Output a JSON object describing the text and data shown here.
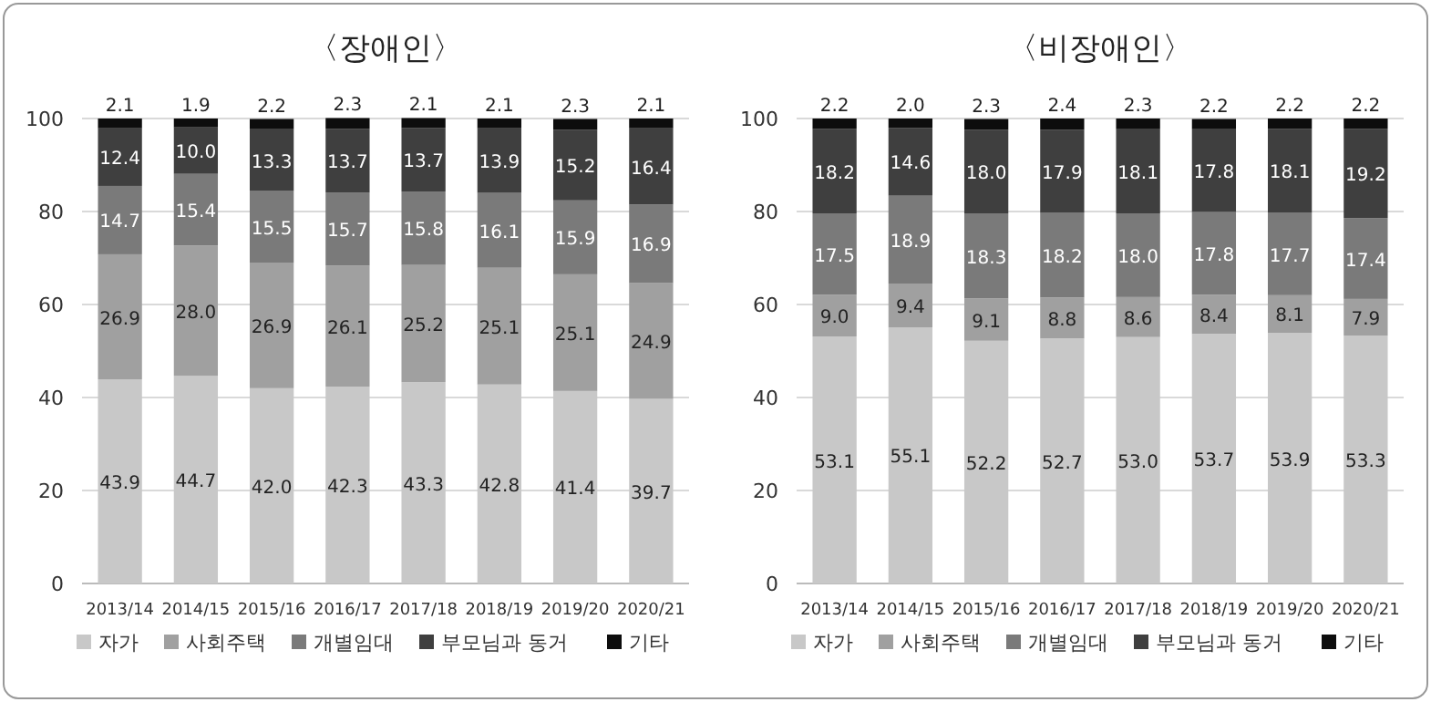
{
  "chart_data": [
    {
      "type": "bar",
      "title": "〈장애인〉",
      "categories": [
        "2013/14",
        "2014/15",
        "2015/16",
        "2016/17",
        "2017/18",
        "2018/19",
        "2019/20",
        "2020/21"
      ],
      "stacked": true,
      "ylim": [
        0,
        100
      ],
      "yticks": [
        0,
        20,
        40,
        60,
        80,
        100
      ],
      "grid": "y",
      "legend": "bottom",
      "series": [
        {
          "name": "자가",
          "color": "#c8c8c8",
          "values": [
            43.9,
            44.7,
            42.0,
            42.3,
            43.3,
            42.8,
            41.4,
            39.7
          ],
          "value_labels": [
            "43.9",
            "44.7",
            "42.0",
            "42.3",
            "43.3",
            "42.8",
            "41.4",
            "39.7"
          ]
        },
        {
          "name": "사회주택",
          "color": "#a0a0a0",
          "values": [
            26.9,
            28.0,
            26.9,
            26.1,
            25.2,
            25.1,
            25.1,
            24.9
          ],
          "value_labels": [
            "26.9",
            "28.0",
            "26.9",
            "26.1",
            "25.2",
            "25.1",
            "25.1",
            "24.9"
          ]
        },
        {
          "name": "개별임대",
          "color": "#7a7a7a",
          "values": [
            14.7,
            15.4,
            15.5,
            15.7,
            15.8,
            16.1,
            15.9,
            16.9
          ],
          "value_labels": [
            "14.7",
            "15.4",
            "15.5",
            "15.7",
            "15.8",
            "16.1",
            "15.9",
            "16.9"
          ]
        },
        {
          "name": "부모님과 동거",
          "color": "#3f3f3f",
          "values": [
            12.4,
            10.0,
            13.3,
            13.7,
            13.7,
            13.9,
            15.2,
            16.4
          ],
          "value_labels": [
            "12.4",
            "10.0",
            "13.3",
            "13.7",
            "13.7",
            "13.9",
            "15.2",
            "16.4"
          ]
        },
        {
          "name": "기타",
          "color": "#0d0d0d",
          "values": [
            2.1,
            1.9,
            2.2,
            2.3,
            2.1,
            2.1,
            2.3,
            2.1
          ],
          "value_labels": [
            "2.1",
            "1.9",
            "2.2",
            "2.3",
            "2.1",
            "2.1",
            "2.3",
            "2.1"
          ]
        }
      ]
    },
    {
      "type": "bar",
      "title": "〈비장애인〉",
      "categories": [
        "2013/14",
        "2014/15",
        "2015/16",
        "2016/17",
        "2017/18",
        "2018/19",
        "2019/20",
        "2020/21"
      ],
      "stacked": true,
      "ylim": [
        0,
        100
      ],
      "yticks": [
        0,
        20,
        40,
        60,
        80,
        100
      ],
      "grid": "y",
      "legend": "bottom",
      "series": [
        {
          "name": "자가",
          "color": "#c8c8c8",
          "values": [
            53.1,
            55.1,
            52.2,
            52.7,
            53.0,
            53.7,
            53.9,
            53.3
          ],
          "value_labels": [
            "53.1",
            "55.1",
            "52.2",
            "52.7",
            "53.0",
            "53.7",
            "53.9",
            "53.3"
          ]
        },
        {
          "name": "사회주택",
          "color": "#a0a0a0",
          "values": [
            9.0,
            9.4,
            9.1,
            8.8,
            8.6,
            8.4,
            8.1,
            7.9
          ],
          "value_labels": [
            "9.0",
            "9.4",
            "9.1",
            "8.8",
            "8.6",
            "8.4",
            "8.1",
            "7.9"
          ]
        },
        {
          "name": "개별임대",
          "color": "#7a7a7a",
          "values": [
            17.5,
            18.9,
            18.3,
            18.2,
            18.0,
            17.8,
            17.7,
            17.4
          ],
          "value_labels": [
            "17.5",
            "18.9",
            "18.3",
            "18.2",
            "18.0",
            "17.8",
            "17.7",
            "17.4"
          ]
        },
        {
          "name": "부모님과 동거",
          "color": "#3f3f3f",
          "values": [
            18.2,
            14.6,
            18.0,
            17.9,
            18.1,
            17.8,
            18.1,
            19.2
          ],
          "value_labels": [
            "18.2",
            "14.6",
            "18.0",
            "17.9",
            "18.1",
            "17.8",
            "18.1",
            "19.2"
          ]
        },
        {
          "name": "기타",
          "color": "#0d0d0d",
          "values": [
            2.2,
            2.0,
            2.3,
            2.4,
            2.3,
            2.2,
            2.2,
            2.2
          ],
          "value_labels": [
            "2.2",
            "2.0",
            "2.3",
            "2.4",
            "2.3",
            "2.2",
            "2.2",
            "2.2"
          ]
        }
      ]
    }
  ]
}
